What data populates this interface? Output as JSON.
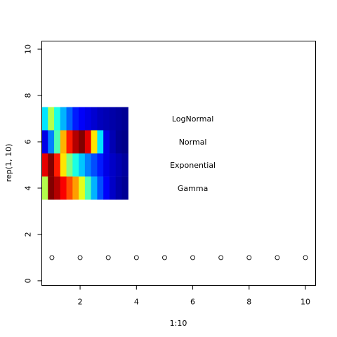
{
  "chart_data": {
    "type": "scatter",
    "title": "",
    "xlabel": "1:10",
    "ylabel": "rep(1, 10)",
    "xlim": [
      0.64,
      10.36
    ],
    "ylim": [
      -0.2,
      10.35
    ],
    "x_ticks": [
      "2",
      "4",
      "6",
      "8",
      "10"
    ],
    "y_ticks": [
      "0",
      "2",
      "4",
      "6",
      "8",
      "10"
    ],
    "grid": false,
    "series": [
      {
        "marker": "open-circle",
        "x": [
          1,
          2,
          3,
          4,
          5,
          6,
          7,
          8,
          9,
          10
        ],
        "y": [
          1,
          1,
          1,
          1,
          1,
          1,
          1,
          1,
          1,
          1
        ]
      }
    ],
    "heat_bands": [
      {
        "label": "LogNormal",
        "x_range": [
          0.64,
          3.7
        ],
        "y_range": [
          6.5,
          7.5
        ],
        "label_x": 6,
        "label_y": 7,
        "intensity": [
          0.35,
          0.55,
          0.4,
          0.3,
          0.22,
          0.15,
          0.12,
          0.1,
          0.08,
          0.06,
          0.05,
          0.04,
          0.03,
          0.02
        ]
      },
      {
        "label": "Normal",
        "x_range": [
          0.64,
          3.7
        ],
        "y_range": [
          5.5,
          6.5
        ],
        "label_x": 6,
        "label_y": 6,
        "intensity": [
          0.1,
          0.25,
          0.45,
          0.7,
          0.85,
          0.95,
          1.0,
          0.9,
          0.65,
          0.35,
          0.1,
          0.05,
          0.02,
          0.01
        ]
      },
      {
        "label": "Exponential",
        "x_range": [
          0.64,
          3.7
        ],
        "y_range": [
          4.5,
          5.5
        ],
        "label_x": 6,
        "label_y": 5,
        "intensity": [
          0.9,
          1.0,
          0.85,
          0.65,
          0.5,
          0.4,
          0.32,
          0.25,
          0.2,
          0.15,
          0.1,
          0.07,
          0.05,
          0.03
        ]
      },
      {
        "label": "Gamma",
        "x_range": [
          0.64,
          3.7
        ],
        "y_range": [
          3.5,
          4.5
        ],
        "label_x": 6,
        "label_y": 4,
        "intensity": [
          0.55,
          1.0,
          0.95,
          0.88,
          0.8,
          0.72,
          0.6,
          0.45,
          0.3,
          0.2,
          0.12,
          0.07,
          0.04,
          0.02
        ]
      }
    ]
  }
}
